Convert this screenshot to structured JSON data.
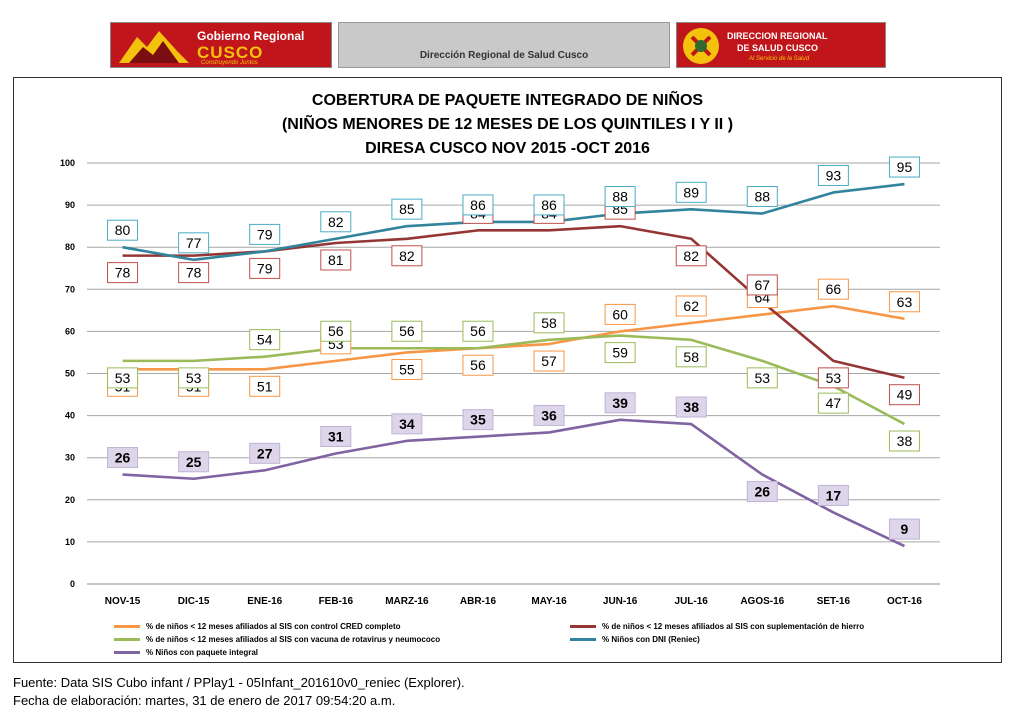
{
  "header": {
    "logo_left": {
      "line1": "Gobierno Regional",
      "line2": "CUSCO",
      "line3": "Construyendo Juntos"
    },
    "center_label": "Dirección Regional de Salud Cusco",
    "logo_right": {
      "line1": "DIRECCION REGIONAL",
      "line2": "DE SALUD CUSCO",
      "line3": "Al Servicio de la Salud"
    }
  },
  "chart_data": {
    "type": "line",
    "title": [
      "COBERTURA DE PAQUETE INTEGRADO DE NIÑOS",
      "(NIÑOS MENORES DE 12 MESES  DE LOS QUINTILES I Y II )",
      "DIRESA CUSCO NOV 2015 -OCT 2016"
    ],
    "categories": [
      "NOV-15",
      "DIC-15",
      "ENE-16",
      "FEB-16",
      "MARZ-16",
      "ABR-16",
      "MAY-16",
      "JUN-16",
      "JUL-16",
      "AGOS-16",
      "SET-16",
      "OCT-16"
    ],
    "ylim": [
      0,
      100
    ],
    "yticks": [
      0,
      10,
      20,
      30,
      40,
      50,
      60,
      70,
      80,
      90,
      100
    ],
    "grid": true,
    "legend_position": "bottom",
    "series": [
      {
        "name": "% de niños < 12 meses afiliados al SIS con control CRED completo",
        "color": "#f79646",
        "values": [
          51,
          51,
          51,
          53,
          55,
          56,
          57,
          60,
          62,
          64,
          66,
          63
        ]
      },
      {
        "name": "% de niños < 12 meses afiliados al SIS con suplementación de hierro",
        "color": "#943634",
        "values": [
          78,
          78,
          79,
          81,
          82,
          84,
          84,
          85,
          82,
          67,
          53,
          49
        ]
      },
      {
        "name": "% de niños < 12 meses afiliados al SIS con  vacuna de rotavirus y neumococo",
        "color": "#9bbb59",
        "values": [
          53,
          53,
          54,
          56,
          56,
          56,
          58,
          59,
          58,
          53,
          47,
          38
        ]
      },
      {
        "name": "% Niños con DNI (Reniec)",
        "color": "#31849b",
        "values": [
          80,
          77,
          79,
          82,
          85,
          86,
          86,
          88,
          89,
          88,
          93,
          95
        ]
      },
      {
        "name": "% Niños con paquete integral",
        "color": "#8064a2",
        "values": [
          26,
          25,
          27,
          31,
          34,
          35,
          36,
          39,
          38,
          26,
          17,
          9
        ]
      }
    ]
  },
  "footer": {
    "source": "Fuente: Data SIS Cubo infant / PPlay1 - 05Infant_201610v0_reniec (Explorer).",
    "date": "Fecha de elaboración: martes, 31 de enero de 2017 09:54:20 a.m."
  }
}
